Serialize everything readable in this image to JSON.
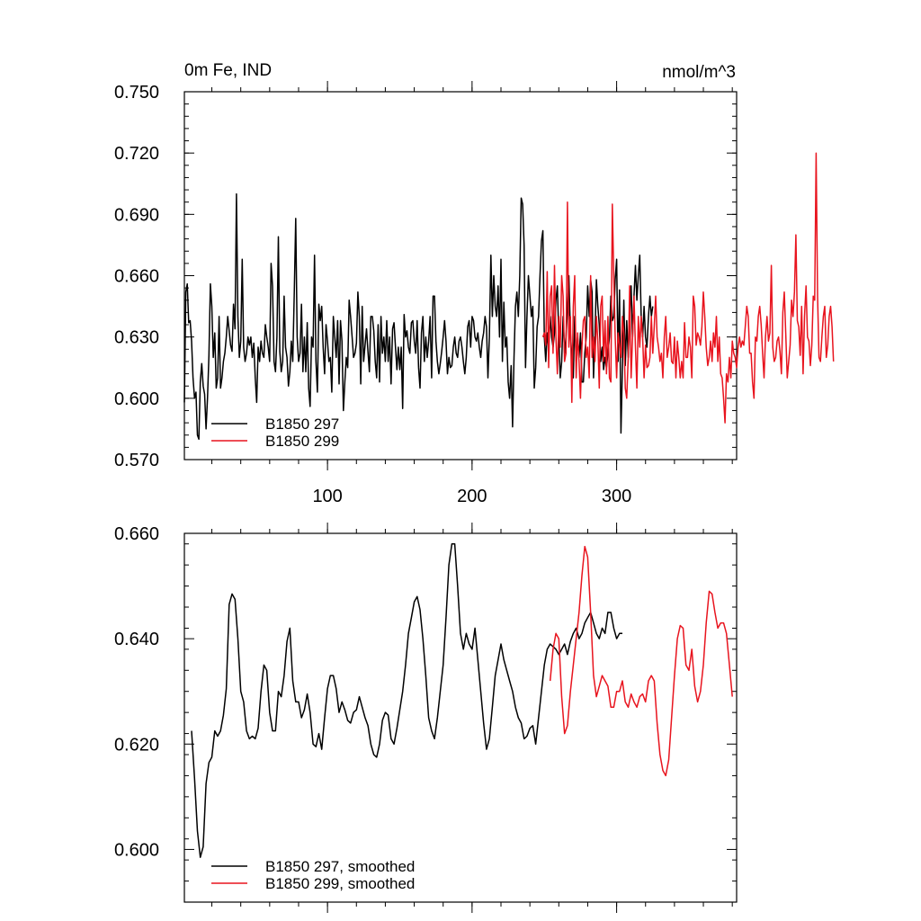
{
  "colors": {
    "series_297": "#000000",
    "series_299": "#e8141e",
    "axis": "#000000",
    "background": "#ffffff"
  },
  "chart_data": [
    {
      "type": "line",
      "title_left": "0m Fe, IND",
      "title_right": "nmol/m^3",
      "xlim": [
        1,
        383
      ],
      "ylim": [
        0.57,
        0.75
      ],
      "x_ticks": [
        100,
        200,
        300
      ],
      "x_tick_labels": [
        "100",
        "200",
        "300"
      ],
      "y_ticks": [
        0.57,
        0.6,
        0.63,
        0.66,
        0.69,
        0.72,
        0.75
      ],
      "y_tick_labels": [
        "0.570",
        "0.600",
        "0.630",
        "0.660",
        "0.690",
        "0.720",
        "0.750"
      ],
      "grid": false,
      "legend_position": "bottom-left",
      "series": [
        {
          "name": "B1850 297",
          "color": "#000000",
          "x_start": 1,
          "values": [
            0.598,
            0.652,
            0.656,
            0.637,
            0.638,
            0.628,
            0.61,
            0.6,
            0.603,
            0.582,
            0.58,
            0.608,
            0.617,
            0.606,
            0.602,
            0.585,
            0.6,
            0.621,
            0.656,
            0.645,
            0.62,
            0.632,
            0.605,
            0.61,
            0.64,
            0.605,
            0.61,
            0.618,
            0.622,
            0.63,
            0.64,
            0.633,
            0.626,
            0.623,
            0.646,
            0.634,
            0.7,
            0.64,
            0.62,
            0.628,
            0.668,
            0.625,
            0.618,
            0.622,
            0.63,
            0.626,
            0.63,
            0.62,
            0.627,
            0.61,
            0.598,
            0.625,
            0.618,
            0.628,
            0.622,
            0.62,
            0.636,
            0.63,
            0.625,
            0.618,
            0.666,
            0.655,
            0.618,
            0.613,
            0.63,
            0.679,
            0.623,
            0.613,
            0.618,
            0.65,
            0.625,
            0.62,
            0.606,
            0.613,
            0.628,
            0.618,
            0.652,
            0.688,
            0.63,
            0.618,
            0.622,
            0.646,
            0.613,
            0.63,
            0.613,
            0.637,
            0.605,
            0.596,
            0.63,
            0.625,
            0.67,
            0.618,
            0.603,
            0.646,
            0.638,
            0.645,
            0.625,
            0.612,
            0.636,
            0.628,
            0.618,
            0.62,
            0.603,
            0.64,
            0.63,
            0.62,
            0.638,
            0.607,
            0.638,
            0.628,
            0.594,
            0.608,
            0.62,
            0.615,
            0.648,
            0.64,
            0.63,
            0.62,
            0.622,
            0.627,
            0.652,
            0.64,
            0.607,
            0.645,
            0.618,
            0.626,
            0.634,
            0.623,
            0.613,
            0.64,
            0.64,
            0.633,
            0.618,
            0.61,
            0.636,
            0.608,
            0.64,
            0.622,
            0.63,
            0.618,
            0.638,
            0.618,
            0.63,
            0.607,
            0.634,
            0.637,
            0.625,
            0.614,
            0.625,
            0.614,
            0.625,
            0.595,
            0.641,
            0.63,
            0.633,
            0.625,
            0.622,
            0.637,
            0.638,
            0.628,
            0.622,
            0.638,
            0.615,
            0.605,
            0.632,
            0.64,
            0.618,
            0.63,
            0.62,
            0.628,
            0.64,
            0.61,
            0.65,
            0.65,
            0.628,
            0.618,
            0.612,
            0.617,
            0.623,
            0.63,
            0.638,
            0.628,
            0.612,
            0.62,
            0.615,
            0.616,
            0.625,
            0.63,
            0.622,
            0.62,
            0.628,
            0.63,
            0.625,
            0.618,
            0.612,
            0.62,
            0.635,
            0.638,
            0.625,
            0.64,
            0.638,
            0.63,
            0.628,
            0.632,
            0.625,
            0.62,
            0.628,
            0.632,
            0.64,
            0.635,
            0.61,
            0.63,
            0.67,
            0.64,
            0.66,
            0.645,
            0.64,
            0.655,
            0.63,
            0.668,
            0.618,
            0.647,
            0.625,
            0.63,
            0.608,
            0.6,
            0.616,
            0.586,
            0.62,
            0.645,
            0.652,
            0.64,
            0.66,
            0.698,
            0.695,
            0.675,
            0.615,
            0.64,
            0.66,
            0.65,
            0.64,
            0.645,
            0.605,
            0.615,
            0.635,
            0.64,
            0.66,
            0.677,
            0.682,
            0.63,
            0.618,
            0.632,
            0.625,
            0.64,
            0.63,
            0.625,
            0.632,
            0.648,
            0.655,
            0.63,
            0.61,
            0.618,
            0.64,
            0.622,
            0.63,
            0.643,
            0.66,
            0.632,
            0.62,
            0.61,
            0.64,
            0.618,
            0.63,
            0.62,
            0.632,
            0.608,
            0.608,
            0.622,
            0.63,
            0.655,
            0.64,
            0.658,
            0.652,
            0.61,
            0.63,
            0.658,
            0.645,
            0.636,
            0.618,
            0.625,
            0.614,
            0.62,
            0.615,
            0.622,
            0.63,
            0.65,
            0.638,
            0.64,
            0.658,
            0.668,
            0.618,
            0.653,
            0.583,
            0.615,
            0.648,
            0.616,
            0.638,
            0.62,
            0.64,
            0.655,
            0.63,
            0.65,
            0.665,
            0.648,
            0.66,
            0.67,
            0.64,
            0.63,
            0.645,
            0.63,
            0.625,
            0.64,
            0.65,
            0.64,
            0.645
          ]
        },
        {
          "name": "B1850 299",
          "color": "#e8141e",
          "x_start": 249,
          "values": [
            0.63,
            0.632,
            0.626,
            0.662,
            0.615,
            0.65,
            0.655,
            0.622,
            0.665,
            0.63,
            0.612,
            0.64,
            0.625,
            0.66,
            0.65,
            0.618,
            0.622,
            0.696,
            0.625,
            0.64,
            0.598,
            0.645,
            0.66,
            0.61,
            0.632,
            0.618,
            0.6,
            0.625,
            0.638,
            0.64,
            0.62,
            0.625,
            0.61,
            0.66,
            0.62,
            0.63,
            0.618,
            0.64,
            0.628,
            0.605,
            0.645,
            0.65,
            0.618,
            0.638,
            0.612,
            0.64,
            0.61,
            0.608,
            0.695,
            0.66,
            0.63,
            0.61,
            0.632,
            0.626,
            0.62,
            0.64,
            0.632,
            0.605,
            0.6,
            0.62,
            0.655,
            0.61,
            0.63,
            0.65,
            0.625,
            0.605,
            0.64,
            0.625,
            0.64,
            0.63,
            0.61,
            0.626,
            0.615,
            0.616,
            0.62,
            0.64,
            0.622,
            0.635,
            0.65,
            0.63,
            0.625,
            0.618,
            0.622,
            0.61,
            0.63,
            0.64,
            0.62,
            0.625,
            0.632,
            0.618,
            0.617,
            0.63,
            0.61,
            0.628,
            0.62,
            0.61,
            0.618,
            0.61,
            0.637,
            0.62,
            0.62,
            0.63,
            0.625,
            0.61,
            0.65,
            0.645,
            0.626,
            0.632,
            0.63,
            0.626,
            0.635,
            0.652,
            0.64,
            0.625,
            0.616,
            0.62,
            0.628,
            0.618,
            0.632,
            0.625,
            0.64,
            0.618,
            0.63,
            0.612,
            0.61,
            0.6,
            0.588,
            0.612,
            0.608,
            0.62,
            0.61,
            0.628,
            0.622,
            0.62,
            0.615,
            0.625,
            0.63,
            0.625,
            0.628,
            0.626,
            0.635,
            0.645,
            0.64,
            0.622,
            0.622,
            0.608,
            0.6,
            0.63,
            0.628,
            0.64,
            0.645,
            0.636,
            0.622,
            0.61,
            0.63,
            0.64,
            0.628,
            0.632,
            0.665,
            0.625,
            0.618,
            0.62,
            0.628,
            0.63,
            0.623,
            0.612,
            0.642,
            0.652,
            0.632,
            0.61,
            0.618,
            0.626,
            0.648,
            0.64,
            0.652,
            0.68,
            0.638,
            0.635,
            0.621,
            0.645,
            0.612,
            0.64,
            0.655,
            0.63,
            0.628,
            0.616,
            0.626,
            0.65,
            0.648,
            0.72,
            0.65,
            0.62,
            0.618,
            0.63,
            0.64,
            0.645,
            0.62,
            0.626,
            0.64,
            0.645,
            0.635,
            0.618
          ]
        }
      ]
    },
    {
      "type": "line",
      "xlim": [
        1,
        383
      ],
      "ylim": [
        0.59,
        0.66
      ],
      "x_ticks": [
        100,
        200,
        300
      ],
      "x_tick_labels": [],
      "y_ticks": [
        0.6,
        0.62,
        0.64,
        0.66
      ],
      "y_tick_labels": [
        "0.600",
        "0.620",
        "0.640",
        "0.660"
      ],
      "grid": false,
      "legend_position": "bottom-left",
      "series": [
        {
          "name": "B1850 297, smoothed",
          "color": "#000000",
          "x": [
            6,
            8,
            10,
            12,
            14,
            16,
            18,
            20,
            22,
            24,
            26,
            28,
            30,
            32,
            34,
            36,
            38,
            40,
            42,
            44,
            46,
            48,
            50,
            52,
            54,
            56,
            58,
            60,
            62,
            64,
            66,
            68,
            70,
            72,
            74,
            76,
            78,
            80,
            82,
            84,
            86,
            88,
            90,
            92,
            94,
            96,
            98,
            100,
            102,
            104,
            106,
            108,
            110,
            112,
            114,
            116,
            118,
            120,
            122,
            124,
            126,
            128,
            130,
            132,
            134,
            136,
            138,
            140,
            142,
            144,
            146,
            148,
            150,
            152,
            154,
            156,
            158,
            160,
            162,
            164,
            166,
            168,
            170,
            172,
            174,
            176,
            178,
            180,
            182,
            184,
            186,
            188,
            190,
            192,
            194,
            196,
            198,
            200,
            202,
            204,
            206,
            208,
            210,
            212,
            214,
            216,
            218,
            220,
            222,
            224,
            226,
            228,
            230,
            232,
            234,
            236,
            238,
            240,
            242,
            244,
            246,
            248,
            250,
            252,
            254,
            256,
            258,
            260,
            262,
            264,
            266,
            268,
            270,
            272,
            274,
            276,
            278,
            280,
            282,
            284,
            286,
            288,
            290,
            292,
            294,
            296,
            298,
            300,
            302,
            304
          ],
          "values": [
            0.6225,
            0.6135,
            0.6035,
            0.5985,
            0.6005,
            0.6125,
            0.6165,
            0.6175,
            0.6225,
            0.6215,
            0.6225,
            0.6255,
            0.6305,
            0.6465,
            0.6485,
            0.6475,
            0.64,
            0.63,
            0.628,
            0.6225,
            0.621,
            0.6215,
            0.621,
            0.623,
            0.63,
            0.635,
            0.634,
            0.626,
            0.6225,
            0.6225,
            0.63,
            0.629,
            0.633,
            0.6395,
            0.642,
            0.632,
            0.628,
            0.628,
            0.625,
            0.6265,
            0.6295,
            0.626,
            0.62,
            0.6195,
            0.622,
            0.619,
            0.625,
            0.6305,
            0.633,
            0.633,
            0.6305,
            0.626,
            0.628,
            0.6265,
            0.6245,
            0.624,
            0.626,
            0.6265,
            0.629,
            0.627,
            0.625,
            0.6235,
            0.62,
            0.618,
            0.6175,
            0.62,
            0.6245,
            0.626,
            0.6255,
            0.621,
            0.62,
            0.623,
            0.6265,
            0.63,
            0.635,
            0.641,
            0.644,
            0.647,
            0.648,
            0.6455,
            0.64,
            0.633,
            0.625,
            0.6225,
            0.621,
            0.625,
            0.63,
            0.635,
            0.644,
            0.654,
            0.658,
            0.658,
            0.65,
            0.641,
            0.638,
            0.641,
            0.639,
            0.638,
            0.642,
            0.636,
            0.63,
            0.624,
            0.619,
            0.621,
            0.627,
            0.633,
            0.636,
            0.639,
            0.636,
            0.634,
            0.632,
            0.63,
            0.627,
            0.625,
            0.624,
            0.621,
            0.6215,
            0.623,
            0.6235,
            0.62,
            0.625,
            0.63,
            0.635,
            0.638,
            0.639,
            0.6385,
            0.638,
            0.637,
            0.638,
            0.639,
            0.637,
            0.6395,
            0.641,
            0.642,
            0.64,
            0.641,
            0.643,
            0.644,
            0.645,
            0.643,
            0.641,
            0.64,
            0.642,
            0.641,
            0.645,
            0.645,
            0.642,
            0.64,
            0.641,
            0.641
          ]
        },
        {
          "name": "B1850 299, smoothed",
          "color": "#e8141e",
          "x": [
            254,
            256,
            258,
            260,
            262,
            264,
            266,
            268,
            270,
            272,
            274,
            276,
            278,
            280,
            282,
            284,
            286,
            288,
            290,
            292,
            294,
            296,
            298,
            300,
            302,
            304,
            306,
            308,
            310,
            312,
            314,
            316,
            318,
            320,
            322,
            324,
            326,
            328,
            330,
            332,
            334,
            336,
            338,
            340,
            342,
            344,
            346,
            348,
            350,
            352,
            354,
            356,
            358,
            360,
            362,
            364,
            366,
            368,
            370,
            372,
            374,
            376,
            378,
            380
          ],
          "values": [
            0.632,
            0.638,
            0.641,
            0.64,
            0.629,
            0.622,
            0.6235,
            0.63,
            0.635,
            0.64,
            0.645,
            0.652,
            0.6575,
            0.6555,
            0.645,
            0.633,
            0.629,
            0.631,
            0.633,
            0.632,
            0.631,
            0.627,
            0.627,
            0.63,
            0.63,
            0.632,
            0.628,
            0.627,
            0.6295,
            0.628,
            0.627,
            0.629,
            0.6295,
            0.628,
            0.632,
            0.633,
            0.632,
            0.624,
            0.618,
            0.615,
            0.614,
            0.617,
            0.625,
            0.633,
            0.64,
            0.6425,
            0.642,
            0.635,
            0.634,
            0.638,
            0.631,
            0.628,
            0.63,
            0.635,
            0.643,
            0.649,
            0.6485,
            0.645,
            0.642,
            0.643,
            0.643,
            0.641,
            0.635,
            0.629
          ]
        }
      ]
    }
  ]
}
